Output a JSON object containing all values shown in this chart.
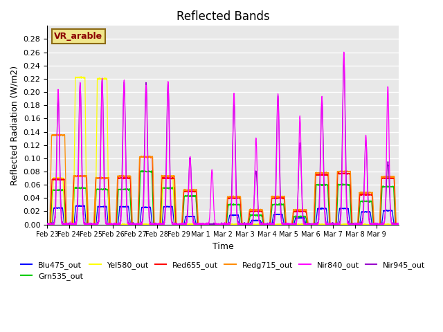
{
  "title": "Reflected Bands",
  "xlabel": "Time",
  "ylabel": "Reflected Radiation (W/m2)",
  "annotation_text": "VR_arable",
  "annotation_box_color": "#f0e68c",
  "annotation_text_color": "#8b0000",
  "ylim": [
    0,
    0.3
  ],
  "yticks": [
    0.0,
    0.02,
    0.04,
    0.06,
    0.08,
    0.1,
    0.12,
    0.14,
    0.16,
    0.18,
    0.2,
    0.22,
    0.24,
    0.26,
    0.28
  ],
  "xtick_labels": [
    "Feb 23",
    "Feb 24",
    "Feb 25",
    "Feb 26",
    "Feb 27",
    "Feb 28",
    "Feb 29",
    "Mar 1",
    "Mar 2",
    "Mar 3",
    "Mar 4",
    "Mar 5",
    "Mar 6",
    "Mar 7",
    "Mar 8",
    "Mar 9"
  ],
  "series": [
    {
      "name": "Blu475_out",
      "color": "#0000ff"
    },
    {
      "name": "Grn535_out",
      "color": "#00cc00"
    },
    {
      "name": "Yel580_out",
      "color": "#ffff00"
    },
    {
      "name": "Red655_out",
      "color": "#ff0000"
    },
    {
      "name": "Redg715_out",
      "color": "#ff8c00"
    },
    {
      "name": "Nir840_out",
      "color": "#ff00ff"
    },
    {
      "name": "Nir945_out",
      "color": "#9900cc"
    }
  ],
  "peaks_nir840": [
    0.205,
    0.215,
    0.22,
    0.218,
    0.21,
    0.215,
    0.102,
    0.082,
    0.198,
    0.13,
    0.197,
    0.163,
    0.193,
    0.26,
    0.135,
    0.208
  ],
  "peaks_nir945": [
    0.19,
    0.212,
    0.218,
    0.215,
    0.215,
    0.215,
    0.102,
    0.0,
    0.185,
    0.08,
    0.195,
    0.122,
    0.19,
    0.252,
    0.127,
    0.095
  ],
  "peaks_redg715": [
    0.135,
    0.073,
    0.07,
    0.073,
    0.102,
    0.073,
    0.052,
    0.0,
    0.042,
    0.022,
    0.042,
    0.022,
    0.078,
    0.08,
    0.048,
    0.072
  ],
  "peaks_red655": [
    0.068,
    0.073,
    0.07,
    0.07,
    0.102,
    0.07,
    0.05,
    0.0,
    0.04,
    0.02,
    0.04,
    0.02,
    0.075,
    0.077,
    0.045,
    0.07
  ],
  "peaks_grn535": [
    0.052,
    0.055,
    0.053,
    0.053,
    0.08,
    0.055,
    0.043,
    0.0,
    0.03,
    0.014,
    0.03,
    0.012,
    0.06,
    0.06,
    0.035,
    0.057
  ],
  "peaks_yel580": [
    0.07,
    0.222,
    0.22,
    0.0,
    0.0,
    0.073,
    0.0,
    0.0,
    0.0,
    0.0,
    0.0,
    0.0,
    0.0,
    0.0,
    0.0,
    0.0
  ],
  "peaks_blu475": [
    0.025,
    0.028,
    0.027,
    0.027,
    0.026,
    0.027,
    0.012,
    0.0,
    0.014,
    0.006,
    0.015,
    0.01,
    0.024,
    0.024,
    0.019,
    0.021
  ],
  "background_color": "#e8e8e8",
  "grid_color": "#ffffff",
  "n_days": 16,
  "pts_per_day": 200
}
